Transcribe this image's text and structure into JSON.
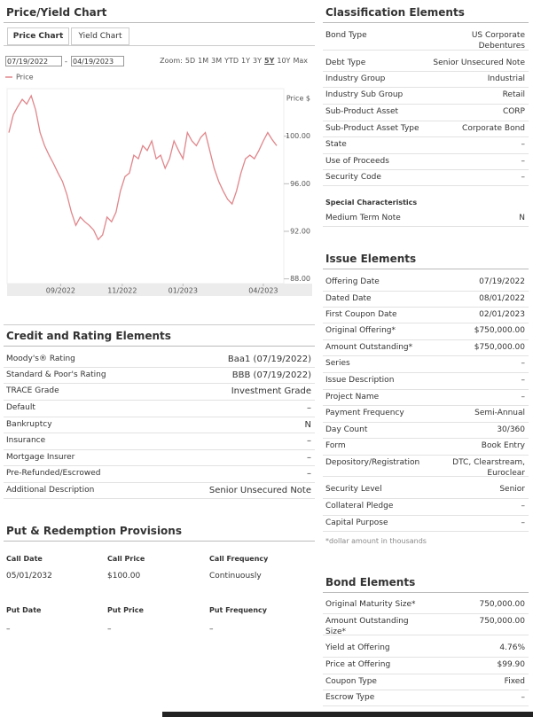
{
  "price_yield": {
    "title": "Price/Yield Chart",
    "tabs": [
      "Price Chart",
      "Yield Chart"
    ],
    "active_tab": 0,
    "start_date": "07/19/2022",
    "date_separator": "-",
    "end_date": "04/19/2023",
    "zoom_label": "Zoom:",
    "zoom_options": [
      "5D",
      "1M",
      "3M",
      "YTD",
      "1Y",
      "3Y",
      "5Y",
      "10Y",
      "Max"
    ],
    "selected_zoom": 6
  },
  "chart_data": {
    "type": "line",
    "y_axis_label": "Price $",
    "series": [
      {
        "name": "Price",
        "color": "#e0868b",
        "values": [
          100.3,
          101.8,
          102.5,
          103.1,
          102.7,
          103.4,
          102.2,
          100.3,
          99.2,
          98.4,
          97.7,
          96.9,
          96.2,
          95.1,
          93.6,
          92.5,
          93.2,
          92.8,
          92.5,
          92.1,
          91.3,
          91.7,
          93.2,
          92.8,
          93.6,
          95.4,
          96.6,
          96.9,
          98.4,
          98.1,
          99.2,
          98.8,
          99.6,
          98.1,
          98.4,
          97.3,
          98.1,
          99.6,
          98.8,
          98.1,
          100.3,
          99.6,
          99.2,
          99.9,
          100.3,
          98.8,
          97.3,
          96.2,
          95.4,
          94.7,
          94.3,
          95.4,
          96.9,
          98.1,
          98.4,
          98.1,
          98.8,
          99.6,
          100.3,
          99.7,
          99.2
        ]
      }
    ],
    "ylim": [
      87.6,
      104
    ],
    "yticks": [
      {
        "value": 100,
        "label": "100.00"
      },
      {
        "value": 96,
        "label": "96.00"
      },
      {
        "value": 92,
        "label": "92.00"
      },
      {
        "value": 88,
        "label": "88.00"
      }
    ],
    "xlim": [
      0,
      60
    ],
    "xticks": [
      {
        "value": 11.6,
        "label": "09/2022"
      },
      {
        "value": 25.4,
        "label": "11/2022"
      },
      {
        "value": 39,
        "label": "01/2023"
      },
      {
        "value": 57,
        "label": "04/2023"
      }
    ]
  },
  "credit_rating": {
    "title": "Credit and Rating Elements",
    "rows": [
      [
        "Moody's® Rating",
        "Baa1 (07/19/2022)"
      ],
      [
        "Standard & Poor's Rating",
        "BBB (07/19/2022)"
      ],
      [
        "TRACE Grade",
        "Investment Grade"
      ],
      [
        "Default",
        "–"
      ],
      [
        "Bankruptcy",
        "N"
      ],
      [
        "Insurance",
        "–"
      ],
      [
        "Mortgage Insurer",
        "–"
      ],
      [
        "Pre-Refunded/Escrowed",
        "–"
      ],
      [
        "Additional Description",
        "Senior Unsecured Note"
      ]
    ]
  },
  "put_redemption": {
    "title": "Put & Redemption Provisions",
    "call": {
      "headers": [
        "Call Date",
        "Call Price",
        "Call Frequency"
      ],
      "values": [
        "05/01/2032",
        "$100.00",
        "Continuously"
      ]
    },
    "put": {
      "headers": [
        "Put Date",
        "Put Price",
        "Put Frequency"
      ],
      "values": [
        "–",
        "–",
        "–"
      ]
    }
  },
  "classification": {
    "title": "Classification Elements",
    "rows": [
      [
        "Bond Type",
        "US Corporate Debentures"
      ],
      [
        "Debt Type",
        "Senior Unsecured Note"
      ],
      [
        "Industry Group",
        "Industrial"
      ],
      [
        "Industry Sub Group",
        "Retail"
      ],
      [
        "Sub-Product Asset",
        "CORP"
      ],
      [
        "Sub-Product Asset Type",
        "Corporate Bond"
      ],
      [
        "State",
        "–"
      ],
      [
        "Use of Proceeds",
        "–"
      ],
      [
        "Security Code",
        "–"
      ]
    ]
  },
  "special_characteristics": {
    "title": "Special Characteristics",
    "rows": [
      [
        "Medium Term Note",
        "N"
      ]
    ]
  },
  "issue_elements": {
    "title": "Issue Elements",
    "rows": [
      [
        "Offering Date",
        "07/19/2022"
      ],
      [
        "Dated Date",
        "08/01/2022"
      ],
      [
        "First Coupon Date",
        "02/01/2023"
      ],
      [
        "Original Offering*",
        "$750,000.00"
      ],
      [
        "Amount Outstanding*",
        "$750,000.00"
      ],
      [
        "Series",
        "–"
      ],
      [
        "Issue Description",
        "–"
      ],
      [
        "Project Name",
        "–"
      ],
      [
        "Payment Frequency",
        "Semi-Annual"
      ],
      [
        "Day Count",
        "30/360"
      ],
      [
        "Form",
        "Book Entry"
      ],
      [
        "Depository/Registration",
        "DTC, Clearstream, Euroclear"
      ],
      [
        "Security Level",
        "Senior"
      ],
      [
        "Collateral Pledge",
        "–"
      ],
      [
        "Capital Purpose",
        "–"
      ]
    ],
    "note": "*dollar amount in thousands"
  },
  "bond_elements": {
    "title": "Bond Elements",
    "rows": [
      [
        "Original Maturity Size*",
        "750,000.00"
      ],
      [
        "Amount Outstanding Size*",
        "750,000.00"
      ],
      [
        "Yield at Offering",
        "4.76%"
      ],
      [
        "Price at Offering",
        "$99.90"
      ],
      [
        "Coupon Type",
        "Fixed"
      ],
      [
        "Escrow Type",
        "–"
      ]
    ]
  }
}
